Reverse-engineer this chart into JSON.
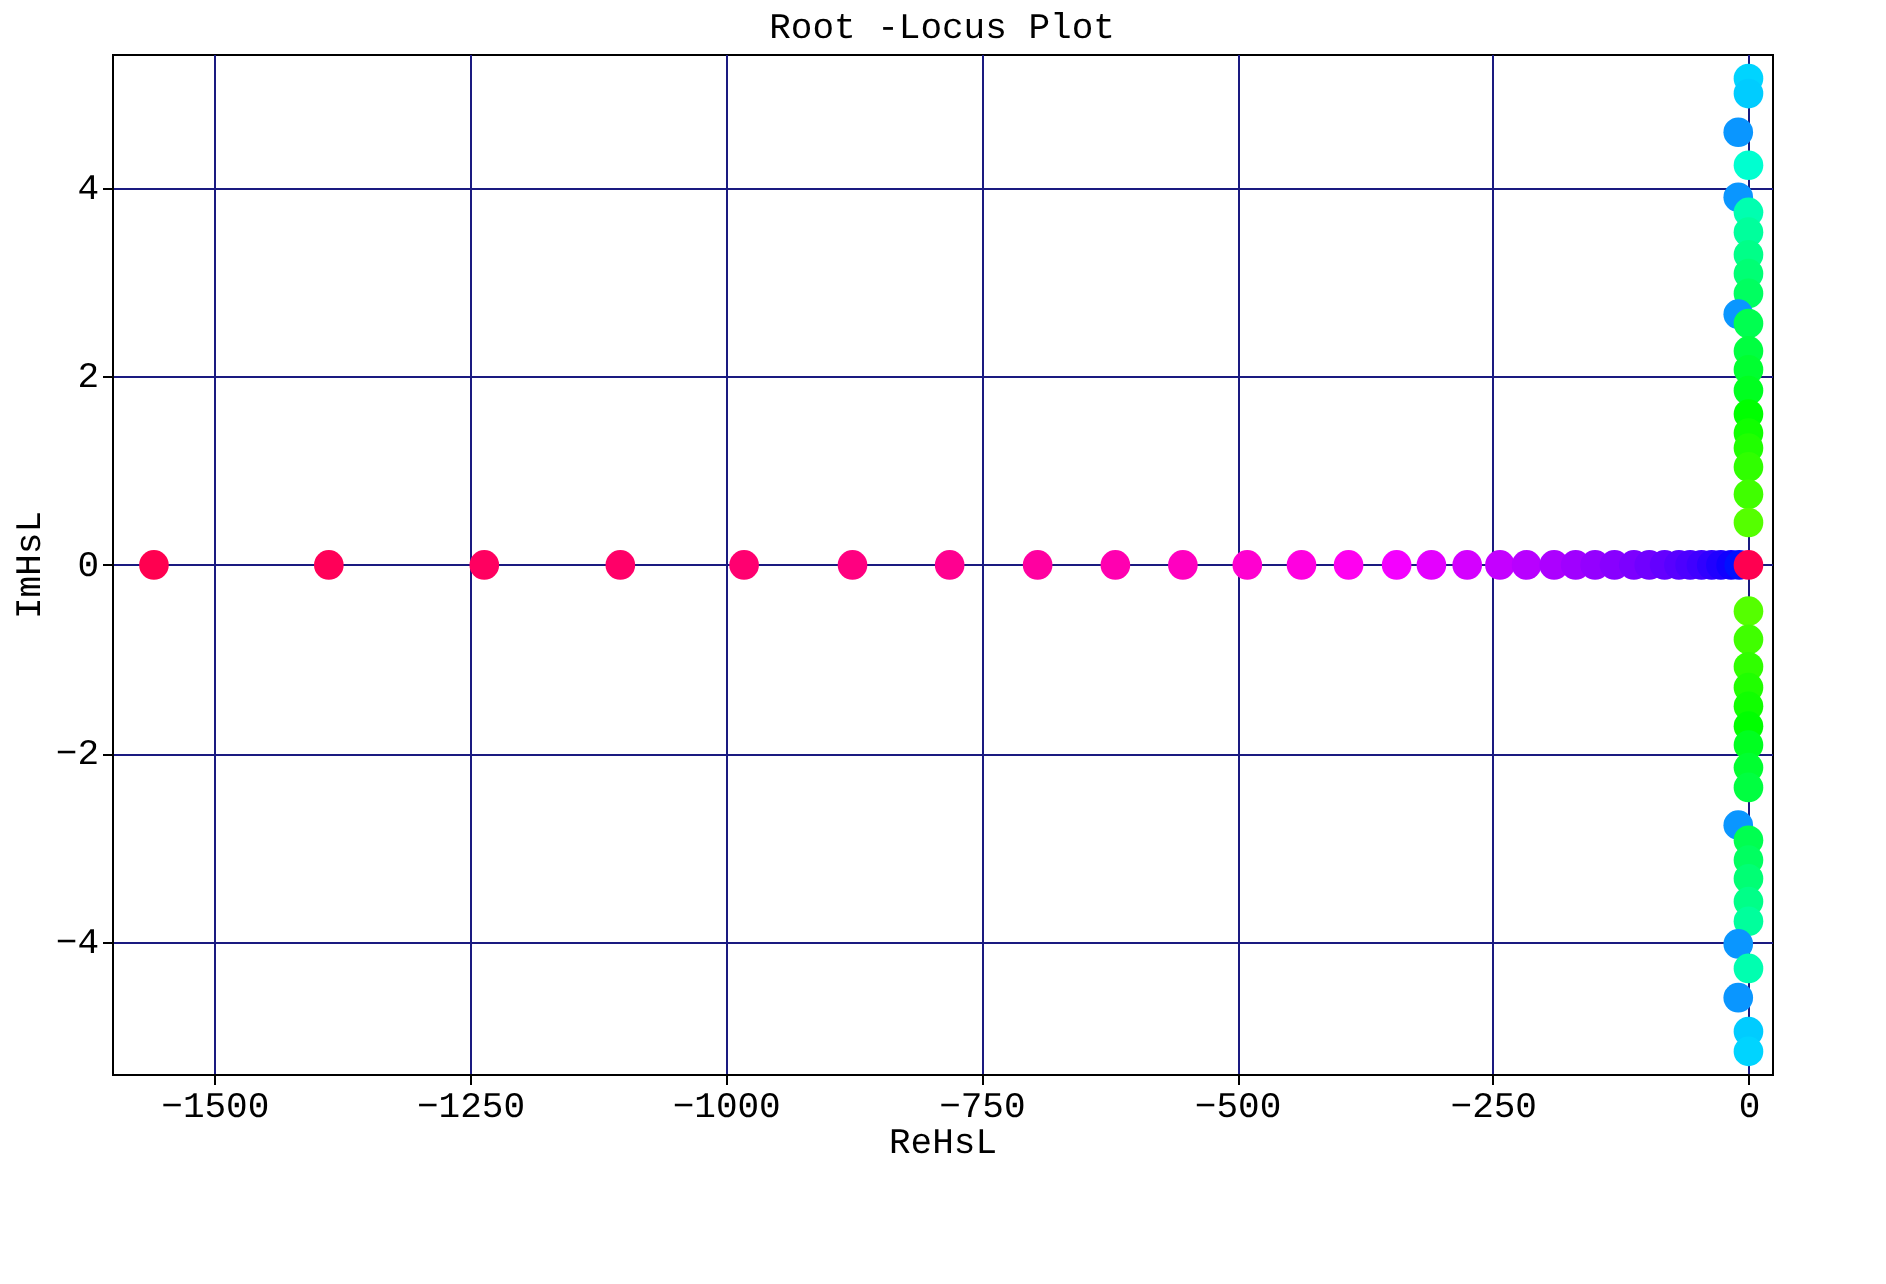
{
  "chart_data": {
    "type": "scatter",
    "title": "Root -Locus  Plot",
    "xlabel": "ReHsL",
    "ylabel": "ImHsL",
    "xlim": [
      -1600,
      23
    ],
    "ylim": [
      -5.4,
      5.42
    ],
    "xticks": [
      -1500,
      -1250,
      -1000,
      -750,
      -500,
      -250,
      0
    ],
    "yticks": [
      -4,
      -2,
      0,
      2,
      4
    ],
    "grid": true,
    "marker": "circle",
    "series": [
      {
        "x": [
          -1559,
          -1388,
          -1236,
          -1103,
          -982,
          -876,
          -781,
          -695,
          -619,
          -553,
          -490,
          -437,
          -391,
          -344,
          -310,
          -275,
          -243,
          -217,
          -190,
          -169,
          -150,
          -131,
          -112,
          -97,
          -82,
          -68,
          -57,
          -46,
          -36,
          -27,
          -17,
          -9,
          0
        ],
        "values": [
          0,
          0,
          0,
          0,
          0,
          0,
          0,
          0,
          0,
          0,
          0,
          0,
          0,
          0,
          0,
          0,
          0,
          0,
          0,
          0,
          0,
          0,
          0,
          0,
          0,
          0,
          0,
          0,
          0,
          0,
          0,
          0,
          0
        ],
        "colors": [
          "#ff0050",
          "#ff0058",
          "#ff0060",
          "#ff0068",
          "#ff0070",
          "#ff0080",
          "#ff0090",
          "#ff00a0",
          "#ff00b0",
          "#ff00c0",
          "#ff00d0",
          "#ff00e0",
          "#ff00f0",
          "#f400ff",
          "#e400ff",
          "#d400ff",
          "#c400ff",
          "#b800ff",
          "#ac00ff",
          "#a000ff",
          "#9400ff",
          "#8800ff",
          "#7c00ff",
          "#7000ff",
          "#6400ff",
          "#5800ff",
          "#4c00ff",
          "#4000ff",
          "#3000ff",
          "#2000ff",
          "#1000ff",
          "#0010ff",
          "#ff0050"
        ]
      },
      {
        "x": [
          0,
          0,
          -10,
          0,
          -10,
          0,
          0,
          0,
          0,
          0,
          -10,
          0,
          0,
          0,
          0,
          0,
          0,
          0,
          0,
          0,
          0
        ],
        "values": [
          5.16,
          5.0,
          4.59,
          4.24,
          3.9,
          3.74,
          3.53,
          3.29,
          3.09,
          2.88,
          2.66,
          2.56,
          2.27,
          2.07,
          1.85,
          1.6,
          1.4,
          1.24,
          1.04,
          0.75,
          0.45
        ],
        "colors": [
          "#00d4ff",
          "#00ccff",
          "#0a96ff",
          "#00ffd0",
          "#0a96ff",
          "#00ffb0",
          "#00ff9c",
          "#00ff88",
          "#00ff74",
          "#00ff60",
          "#0a96ff",
          "#00ff50",
          "#00ff40",
          "#00ff30",
          "#00ff20",
          "#00ff00",
          "#10ff00",
          "#20ff00",
          "#30ff00",
          "#40ff00",
          "#55ff00"
        ]
      },
      {
        "x": [
          0,
          0,
          0,
          0,
          0,
          0,
          0,
          0,
          0,
          -10,
          0,
          0,
          0,
          0,
          0,
          -10,
          0,
          -10,
          0,
          0
        ],
        "values": [
          -0.49,
          -0.79,
          -1.08,
          -1.3,
          -1.5,
          -1.71,
          -1.91,
          -2.15,
          -2.36,
          -2.76,
          -2.92,
          -3.13,
          -3.33,
          -3.57,
          -3.78,
          -4.02,
          -4.28,
          -4.59,
          -4.95,
          -5.16
        ],
        "colors": [
          "#55ff00",
          "#40ff00",
          "#30ff00",
          "#20ff00",
          "#10ff00",
          "#00ff00",
          "#00ff20",
          "#00ff30",
          "#00ff40",
          "#0a96ff",
          "#00ff50",
          "#00ff60",
          "#00ff74",
          "#00ff88",
          "#00ff9c",
          "#0a96ff",
          "#00ffb0",
          "#0a96ff",
          "#00ccff",
          "#00d4ff"
        ]
      }
    ]
  }
}
